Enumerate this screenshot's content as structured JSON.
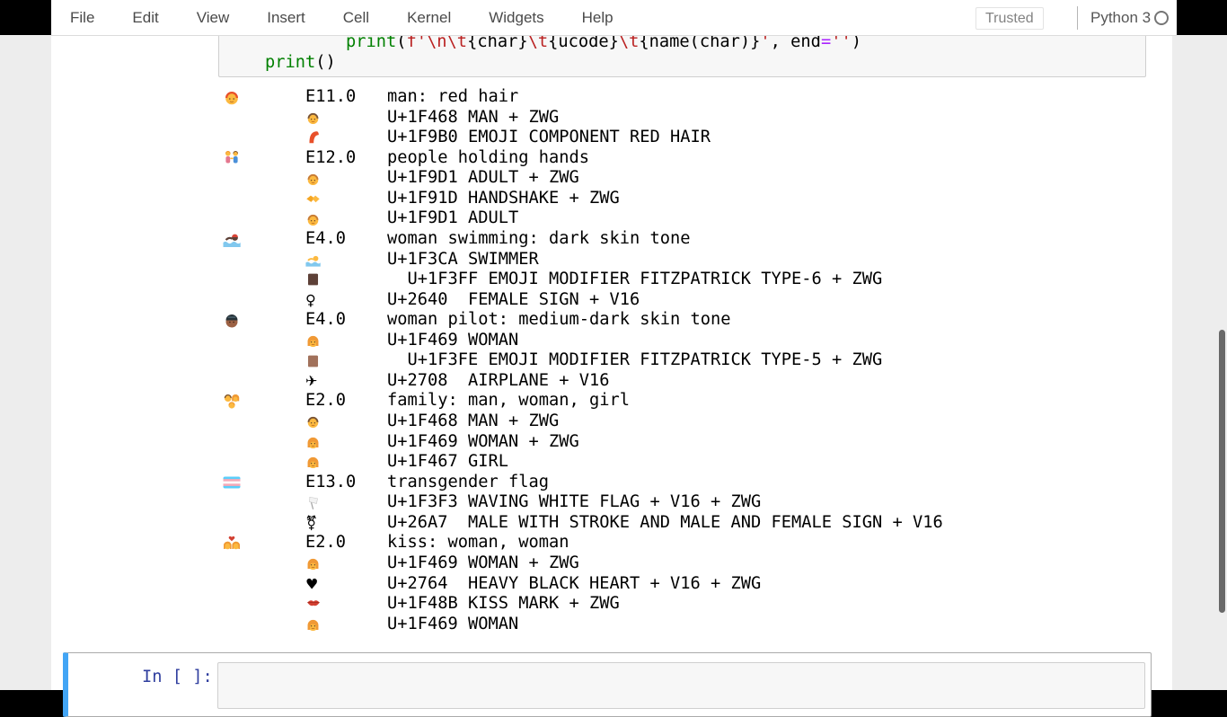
{
  "header": {
    "menus": [
      "File",
      "Edit",
      "View",
      "Insert",
      "Cell",
      "Kernel",
      "Widgets",
      "Help"
    ],
    "trusted": "Trusted",
    "kernel_name": "Python 3",
    "kernel_indicator_icon": "kernel-idle-circle"
  },
  "code_cell": {
    "lines": [
      {
        "tokens": [
          {
            "text": "            ",
            "style": "plain"
          },
          {
            "text": "print",
            "style": "builtin"
          },
          {
            "text": "(",
            "style": "plain"
          },
          {
            "text": "f'\\n\\t",
            "style": "string"
          },
          {
            "text": "{char}",
            "style": "plain"
          },
          {
            "text": "\\t",
            "style": "string"
          },
          {
            "text": "{ucode}",
            "style": "plain"
          },
          {
            "text": "\\t",
            "style": "string"
          },
          {
            "text": "{name(char)}",
            "style": "plain"
          },
          {
            "text": "'",
            "style": "string"
          },
          {
            "text": ", ",
            "style": "plain"
          },
          {
            "text": "end",
            "style": "plain"
          },
          {
            "text": "=",
            "style": "operator"
          },
          {
            "text": "''",
            "style": "string"
          },
          {
            "text": ")",
            "style": "plain"
          }
        ]
      },
      {
        "tokens": [
          {
            "text": "    ",
            "style": "plain"
          },
          {
            "text": "print",
            "style": "builtin"
          },
          {
            "text": "()",
            "style": "plain"
          }
        ]
      }
    ]
  },
  "output": {
    "rows": [
      {
        "type": "main",
        "emoji": "man-red-hair",
        "code": "E11.0",
        "text": "man: red hair"
      },
      {
        "type": "sub",
        "emoji": "man",
        "text": "U+1F468 MAN + ZWG"
      },
      {
        "type": "sub",
        "emoji": "red-hair",
        "text": "U+1F9B0 EMOJI COMPONENT RED HAIR"
      },
      {
        "type": "main",
        "emoji": "people-holding-hands",
        "code": "E12.0",
        "text": "people holding hands"
      },
      {
        "type": "sub",
        "emoji": "adult",
        "text": "U+1F9D1 ADULT + ZWG"
      },
      {
        "type": "sub",
        "emoji": "handshake",
        "text": "U+1F91D HANDSHAKE + ZWG"
      },
      {
        "type": "sub",
        "emoji": "adult",
        "text": "U+1F9D1 ADULT"
      },
      {
        "type": "main",
        "emoji": "woman-swimming-dark",
        "code": "E4.0",
        "text": "woman swimming: dark skin tone"
      },
      {
        "type": "sub",
        "emoji": "swimmer",
        "text": "U+1F3CA SWIMMER"
      },
      {
        "type": "sub",
        "emoji": "skin-tone-6",
        "text": "  U+1F3FF EMOJI MODIFIER FITZPATRICK TYPE-6 + ZWG"
      },
      {
        "type": "sub",
        "emoji": "female-sign",
        "text": "U+2640  FEMALE SIGN + V16"
      },
      {
        "type": "main",
        "emoji": "woman-pilot-mediumdark",
        "code": "E4.0",
        "text": "woman pilot: medium-dark skin tone"
      },
      {
        "type": "sub",
        "emoji": "woman",
        "text": "U+1F469 WOMAN"
      },
      {
        "type": "sub",
        "emoji": "skin-tone-5",
        "text": "  U+1F3FE EMOJI MODIFIER FITZPATRICK TYPE-5 + ZWG"
      },
      {
        "type": "sub",
        "emoji": "airplane",
        "text": "U+2708  AIRPLANE + V16"
      },
      {
        "type": "main",
        "emoji": "family-man-woman-girl",
        "code": "E2.0",
        "text": "family: man, woman, girl"
      },
      {
        "type": "sub",
        "emoji": "man",
        "text": "U+1F468 MAN + ZWG"
      },
      {
        "type": "sub",
        "emoji": "woman",
        "text": "U+1F469 WOMAN + ZWG"
      },
      {
        "type": "sub",
        "emoji": "girl",
        "text": "U+1F467 GIRL"
      },
      {
        "type": "main",
        "emoji": "transgender-flag",
        "code": "E13.0",
        "text": "transgender flag"
      },
      {
        "type": "sub",
        "emoji": "white-flag",
        "text": "U+1F3F3 WAVING WHITE FLAG + V16 + ZWG"
      },
      {
        "type": "sub",
        "emoji": "transgender-sign",
        "text": "U+26A7  MALE WITH STROKE AND MALE AND FEMALE SIGN + V16"
      },
      {
        "type": "main",
        "emoji": "kiss-woman-woman",
        "code": "E2.0",
        "text": "kiss: woman, woman"
      },
      {
        "type": "sub",
        "emoji": "woman",
        "text": "U+1F469 WOMAN + ZWG"
      },
      {
        "type": "sub",
        "emoji": "heavy-black-heart",
        "text": "U+2764  HEAVY BLACK HEART + V16 + ZWG"
      },
      {
        "type": "sub",
        "emoji": "kiss-mark",
        "text": "U+1F48B KISS MARK + ZWG"
      },
      {
        "type": "sub",
        "emoji": "woman",
        "text": "U+1F469 WOMAN"
      }
    ]
  },
  "empty_cell": {
    "prompt": "In [ ]:"
  },
  "colors": {
    "selected_cell_bar": "#42A5F5",
    "prompt_blue": "#303F9F",
    "code_builtin_green": "#008000",
    "code_string_red": "#BA2121",
    "code_operator_purple": "#AA22FF",
    "trans_flag_blue": "#5BCEFA",
    "trans_flag_pink": "#F5A9B8"
  }
}
